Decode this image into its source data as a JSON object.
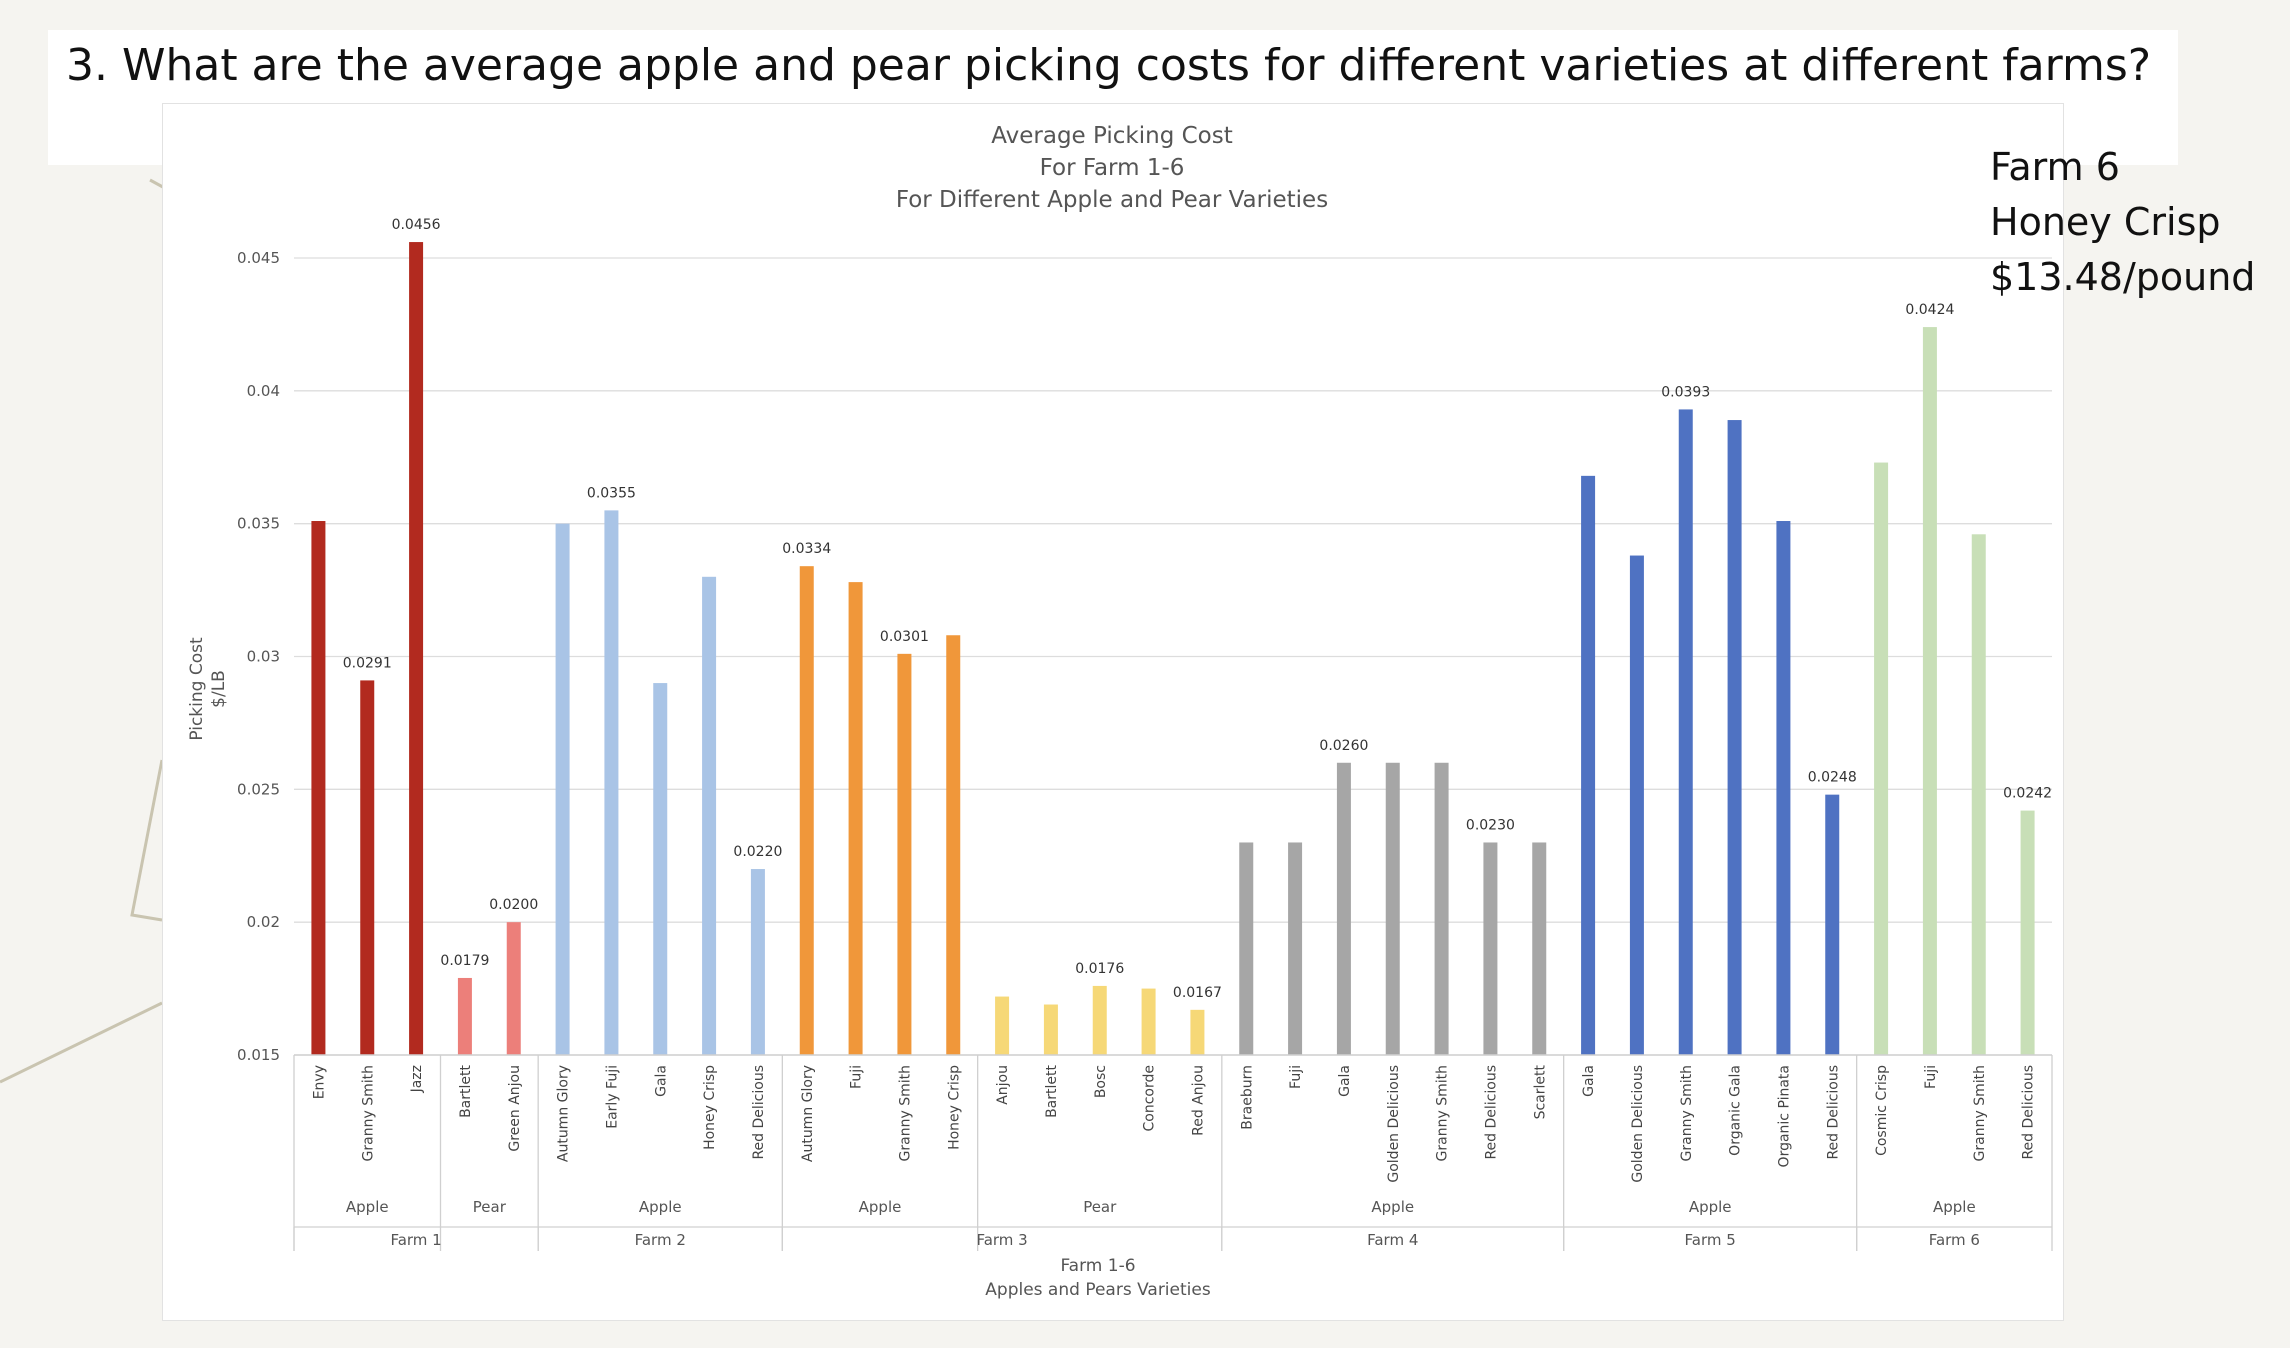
{
  "question": "3. What are the average apple and pear picking costs for different varieties at different farms?",
  "callout": {
    "line1": "Farm 6",
    "line2": "Honey Crisp",
    "line3": "$13.48/pound"
  },
  "colors": {
    "farm1_apple": "#b22a1f",
    "farm1_pear": "#ec7f7a",
    "farm2": "#a9c4e6",
    "farm3_apple": "#f0973a",
    "farm3_pear": "#f6d877",
    "farm4": "#a6a6a6",
    "farm5": "#4f72c2",
    "farm6": "#c8dfb7"
  },
  "chart_data": {
    "type": "bar",
    "title": [
      "Average Picking Cost",
      "For Farm 1-6",
      "For Different Apple and Pear Varieties"
    ],
    "ylabel": [
      "Picking Cost",
      "$/LB"
    ],
    "xlabel": [
      "Farm 1-6",
      "Apples and Pears Varieties"
    ],
    "ylim": [
      0.015,
      0.045
    ],
    "yticks": [
      "0.015",
      "0.02",
      "0.025",
      "0.03",
      "0.035",
      "0.04",
      "0.045"
    ],
    "grid": true,
    "bars": [
      {
        "farm": "Farm 1",
        "fruit": "Apple",
        "variety": "Envy",
        "value": 0.0351,
        "label": ""
      },
      {
        "farm": "Farm 1",
        "fruit": "Apple",
        "variety": "Granny Smith",
        "value": 0.0291,
        "label": "0.0291"
      },
      {
        "farm": "Farm 1",
        "fruit": "Apple",
        "variety": "Jazz",
        "value": 0.0456,
        "label": "0.0456"
      },
      {
        "farm": "Farm 1",
        "fruit": "Pear",
        "variety": "Bartlett",
        "value": 0.0179,
        "label": "0.0179"
      },
      {
        "farm": "Farm 1",
        "fruit": "Pear",
        "variety": "Green Anjou",
        "value": 0.02,
        "label": "0.0200"
      },
      {
        "farm": "Farm 2",
        "fruit": "Apple",
        "variety": "Autumn Glory",
        "value": 0.035,
        "label": ""
      },
      {
        "farm": "Farm 2",
        "fruit": "Apple",
        "variety": "Early Fuji",
        "value": 0.0355,
        "label": "0.0355"
      },
      {
        "farm": "Farm 2",
        "fruit": "Apple",
        "variety": "Gala",
        "value": 0.029,
        "label": ""
      },
      {
        "farm": "Farm 2",
        "fruit": "Apple",
        "variety": "Honey Crisp",
        "value": 0.033,
        "label": ""
      },
      {
        "farm": "Farm 2",
        "fruit": "Apple",
        "variety": "Red Delicious",
        "value": 0.022,
        "label": "0.0220"
      },
      {
        "farm": "Farm 3",
        "fruit": "Apple",
        "variety": "Autumn Glory",
        "value": 0.0334,
        "label": "0.0334"
      },
      {
        "farm": "Farm 3",
        "fruit": "Apple",
        "variety": "Fuji",
        "value": 0.0328,
        "label": ""
      },
      {
        "farm": "Farm 3",
        "fruit": "Apple",
        "variety": "Granny Smith",
        "value": 0.0301,
        "label": "0.0301"
      },
      {
        "farm": "Farm 3",
        "fruit": "Apple",
        "variety": "Honey Crisp",
        "value": 0.0308,
        "label": ""
      },
      {
        "farm": "Farm 3",
        "fruit": "Pear",
        "variety": "Anjou",
        "value": 0.0172,
        "label": ""
      },
      {
        "farm": "Farm 3",
        "fruit": "Pear",
        "variety": "Bartlett",
        "value": 0.0169,
        "label": ""
      },
      {
        "farm": "Farm 3",
        "fruit": "Pear",
        "variety": "Bosc",
        "value": 0.0176,
        "label": "0.0176"
      },
      {
        "farm": "Farm 3",
        "fruit": "Pear",
        "variety": "Concorde",
        "value": 0.0175,
        "label": ""
      },
      {
        "farm": "Farm 3",
        "fruit": "Pear",
        "variety": "Red Anjou",
        "value": 0.0167,
        "label": "0.0167"
      },
      {
        "farm": "Farm 4",
        "fruit": "Apple",
        "variety": "Braeburn",
        "value": 0.023,
        "label": ""
      },
      {
        "farm": "Farm 4",
        "fruit": "Apple",
        "variety": "Fuji",
        "value": 0.023,
        "label": ""
      },
      {
        "farm": "Farm 4",
        "fruit": "Apple",
        "variety": "Gala",
        "value": 0.026,
        "label": "0.0260"
      },
      {
        "farm": "Farm 4",
        "fruit": "Apple",
        "variety": "Golden Delicious",
        "value": 0.026,
        "label": ""
      },
      {
        "farm": "Farm 4",
        "fruit": "Apple",
        "variety": "Granny Smith",
        "value": 0.026,
        "label": ""
      },
      {
        "farm": "Farm 4",
        "fruit": "Apple",
        "variety": "Red Delicious",
        "value": 0.023,
        "label": "0.0230"
      },
      {
        "farm": "Farm 4",
        "fruit": "Apple",
        "variety": "Scarlett",
        "value": 0.023,
        "label": ""
      },
      {
        "farm": "Farm 5",
        "fruit": "Apple",
        "variety": "Gala",
        "value": 0.0368,
        "label": ""
      },
      {
        "farm": "Farm 5",
        "fruit": "Apple",
        "variety": "Golden Delicious",
        "value": 0.0338,
        "label": ""
      },
      {
        "farm": "Farm 5",
        "fruit": "Apple",
        "variety": "Granny Smith",
        "value": 0.0393,
        "label": "0.0393"
      },
      {
        "farm": "Farm 5",
        "fruit": "Apple",
        "variety": "Organic Gala",
        "value": 0.0389,
        "label": ""
      },
      {
        "farm": "Farm 5",
        "fruit": "Apple",
        "variety": "Organic Pinata",
        "value": 0.0351,
        "label": ""
      },
      {
        "farm": "Farm 5",
        "fruit": "Apple",
        "variety": "Red Delicious",
        "value": 0.0248,
        "label": "0.0248"
      },
      {
        "farm": "Farm 6",
        "fruit": "Apple",
        "variety": "Cosmic Crisp",
        "value": 0.0373,
        "label": ""
      },
      {
        "farm": "Farm 6",
        "fruit": "Apple",
        "variety": "Fuji",
        "value": 0.0424,
        "label": "0.0424"
      },
      {
        "farm": "Farm 6",
        "fruit": "Apple",
        "variety": "Granny Smith",
        "value": 0.0346,
        "label": ""
      },
      {
        "farm": "Farm 6",
        "fruit": "Apple",
        "variety": "Red Delicious",
        "value": 0.0242,
        "label": "0.0242"
      }
    ],
    "fruit_groups": [
      {
        "farm": "Farm 1",
        "fruit": "Apple",
        "color": "#b22a1f"
      },
      {
        "farm": "Farm 1",
        "fruit": "Pear",
        "color": "#ec7f7a"
      },
      {
        "farm": "Farm 2",
        "fruit": "Apple",
        "color": "#a9c4e6"
      },
      {
        "farm": "Farm 3",
        "fruit": "Apple",
        "color": "#f0973a"
      },
      {
        "farm": "Farm 3",
        "fruit": "Pear",
        "color": "#f6d877"
      },
      {
        "farm": "Farm 4",
        "fruit": "Apple",
        "color": "#a6a6a6"
      },
      {
        "farm": "Farm 5",
        "fruit": "Apple",
        "color": "#4f72c2"
      },
      {
        "farm": "Farm 6",
        "fruit": "Apple",
        "color": "#c8dfb7"
      }
    ]
  }
}
